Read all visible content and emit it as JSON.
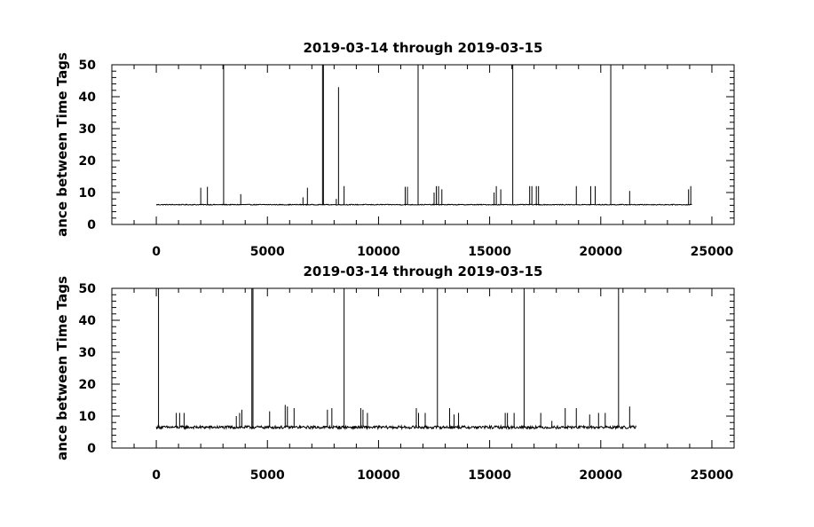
{
  "chart_data": [
    {
      "type": "line",
      "title": "2019-03-14 through 2019-03-15",
      "ylabel": "ance between Time Tags",
      "xlim": [
        -2000,
        26000
      ],
      "ylim": [
        0,
        50
      ],
      "xticks": [
        0,
        5000,
        10000,
        15000,
        20000,
        25000
      ],
      "xtick_labels": [
        "0",
        "5000",
        "10000",
        "15000",
        "20000",
        "25000"
      ],
      "yticks": [
        0,
        10,
        20,
        30,
        40,
        50
      ],
      "ytick_labels": [
        "0",
        "10",
        "20",
        "30",
        "40",
        "50"
      ],
      "baseline": 6.2,
      "x_extent": [
        0,
        24100
      ],
      "series": [
        {
          "spikes": [
            {
              "x": 2000,
              "y": 11.5
            },
            {
              "x": 2300,
              "y": 11.8
            },
            {
              "x": 3030,
              "y": 50
            },
            {
              "x": 3800,
              "y": 9.5
            },
            {
              "x": 6600,
              "y": 8.5
            },
            {
              "x": 6800,
              "y": 11.5
            },
            {
              "x": 7480,
              "y": 50
            },
            {
              "x": 7520,
              "y": 50
            },
            {
              "x": 8100,
              "y": 8
            },
            {
              "x": 8200,
              "y": 43
            },
            {
              "x": 8450,
              "y": 12
            },
            {
              "x": 11200,
              "y": 11.8
            },
            {
              "x": 11300,
              "y": 11.8
            },
            {
              "x": 11780,
              "y": 50
            },
            {
              "x": 12500,
              "y": 10
            },
            {
              "x": 12600,
              "y": 12
            },
            {
              "x": 12700,
              "y": 12
            },
            {
              "x": 12850,
              "y": 11
            },
            {
              "x": 15200,
              "y": 10
            },
            {
              "x": 15300,
              "y": 12
            },
            {
              "x": 15500,
              "y": 11
            },
            {
              "x": 16040,
              "y": 50
            },
            {
              "x": 16800,
              "y": 12
            },
            {
              "x": 16900,
              "y": 12
            },
            {
              "x": 17100,
              "y": 12
            },
            {
              "x": 17200,
              "y": 12
            },
            {
              "x": 18900,
              "y": 12
            },
            {
              "x": 19550,
              "y": 12
            },
            {
              "x": 19750,
              "y": 12
            },
            {
              "x": 20450,
              "y": 50
            },
            {
              "x": 21300,
              "y": 10.5
            },
            {
              "x": 23950,
              "y": 11
            },
            {
              "x": 24050,
              "y": 12
            }
          ]
        }
      ]
    },
    {
      "type": "line",
      "title": "2019-03-14 through 2019-03-15",
      "ylabel": "ance between Time Tags",
      "xlim": [
        -2000,
        26000
      ],
      "ylim": [
        0,
        50
      ],
      "xticks": [
        0,
        5000,
        10000,
        15000,
        20000,
        25000
      ],
      "xtick_labels": [
        "0",
        "5000",
        "10000",
        "15000",
        "20000",
        "25000"
      ],
      "yticks": [
        0,
        10,
        20,
        30,
        40,
        50
      ],
      "ytick_labels": [
        "0",
        "10",
        "20",
        "30",
        "40",
        "50"
      ],
      "baseline": 6.5,
      "x_extent": [
        0,
        21600
      ],
      "series": [
        {
          "spikes": [
            {
              "x": 100,
              "y": 50
            },
            {
              "x": 900,
              "y": 11
            },
            {
              "x": 1050,
              "y": 11
            },
            {
              "x": 1250,
              "y": 11
            },
            {
              "x": 3600,
              "y": 10
            },
            {
              "x": 3750,
              "y": 11
            },
            {
              "x": 3850,
              "y": 12
            },
            {
              "x": 4300,
              "y": 50
            },
            {
              "x": 4350,
              "y": 50
            },
            {
              "x": 5100,
              "y": 11.5
            },
            {
              "x": 5800,
              "y": 13.5
            },
            {
              "x": 5900,
              "y": 13
            },
            {
              "x": 6200,
              "y": 12.5
            },
            {
              "x": 7700,
              "y": 12
            },
            {
              "x": 7900,
              "y": 12.5
            },
            {
              "x": 8450,
              "y": 50
            },
            {
              "x": 9200,
              "y": 12.5
            },
            {
              "x": 9300,
              "y": 12
            },
            {
              "x": 9500,
              "y": 11
            },
            {
              "x": 11700,
              "y": 12.5
            },
            {
              "x": 11800,
              "y": 11
            },
            {
              "x": 12100,
              "y": 11
            },
            {
              "x": 12650,
              "y": 50
            },
            {
              "x": 13200,
              "y": 12.5
            },
            {
              "x": 13400,
              "y": 10.5
            },
            {
              "x": 13600,
              "y": 11
            },
            {
              "x": 15700,
              "y": 11
            },
            {
              "x": 15800,
              "y": 11
            },
            {
              "x": 16100,
              "y": 11
            },
            {
              "x": 16550,
              "y": 50
            },
            {
              "x": 17300,
              "y": 11
            },
            {
              "x": 17800,
              "y": 8.5
            },
            {
              "x": 18400,
              "y": 12.5
            },
            {
              "x": 18900,
              "y": 12.5
            },
            {
              "x": 19500,
              "y": 10.5
            },
            {
              "x": 19900,
              "y": 11
            },
            {
              "x": 20200,
              "y": 11
            },
            {
              "x": 20800,
              "y": 50
            },
            {
              "x": 21300,
              "y": 13
            }
          ]
        }
      ]
    }
  ]
}
